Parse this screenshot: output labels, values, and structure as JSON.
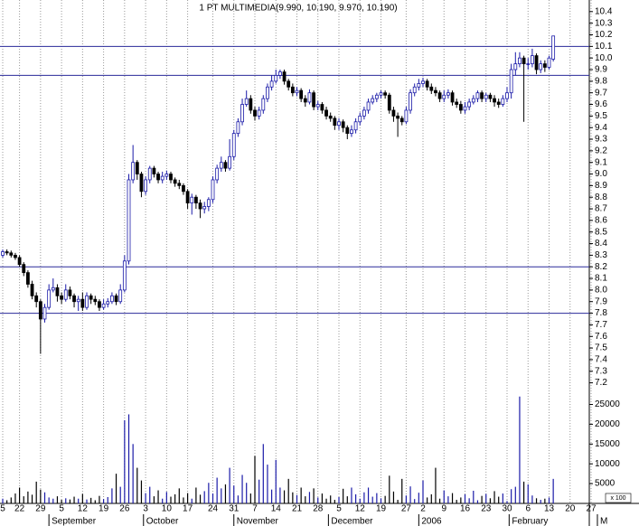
{
  "chart_data": {
    "type": "candlestick",
    "title": "1 PT MULTIMEDIA(9.990, 10.190, 9.970, 10.190)",
    "up_color": "#1a1aa8",
    "down_color": "#000000",
    "hline_color": "#2a2a9a",
    "hlines": [
      10.1,
      9.85,
      8.2,
      7.8
    ],
    "ylim": [
      7.15,
      10.5
    ],
    "yticks": [
      7.2,
      7.3,
      7.4,
      7.5,
      7.6,
      7.7,
      7.8,
      7.9,
      {
        "value": 8,
        "label": "8.0"
      },
      8.1,
      8.2,
      8.3,
      8.4,
      8.5,
      8.6,
      8.7,
      8.8,
      8.9,
      {
        "value": 9,
        "label": "9.0"
      },
      9.1,
      9.2,
      9.3,
      9.4,
      9.5,
      9.6,
      9.7,
      9.8,
      9.9,
      {
        "value": 10,
        "label": "10.0"
      },
      10.1,
      10.2,
      10.3,
      10.4
    ],
    "volume_ylim": [
      0,
      29000
    ],
    "volume_yticks": [
      5000,
      10000,
      15000,
      20000,
      25000
    ],
    "volume_unit": "x 100",
    "xticks": [
      {
        "value": 0,
        "label": "5"
      },
      {
        "value": 4,
        "label": "22"
      },
      {
        "value": 9,
        "label": "29"
      },
      {
        "value": 14,
        "label": "5"
      },
      {
        "value": 19,
        "label": "12"
      },
      {
        "value": 24,
        "label": "19"
      },
      {
        "value": 29,
        "label": "26"
      },
      {
        "value": 34,
        "label": "3"
      },
      {
        "value": 39,
        "label": "10"
      },
      {
        "value": 44,
        "label": "17"
      },
      {
        "value": 50,
        "label": "24"
      },
      {
        "value": 55,
        "label": "31"
      },
      {
        "value": 60,
        "label": "7"
      },
      {
        "value": 65,
        "label": "14"
      },
      {
        "value": 70,
        "label": "21"
      },
      {
        "value": 75,
        "label": "28"
      },
      {
        "value": 80,
        "label": "5"
      },
      {
        "value": 85,
        "label": "12"
      },
      {
        "value": 90,
        "label": "19"
      },
      {
        "value": 96,
        "label": "27"
      },
      {
        "value": 100,
        "label": "2"
      },
      {
        "value": 105,
        "label": "9"
      },
      {
        "value": 110,
        "label": "16"
      },
      {
        "value": 115,
        "label": "23"
      },
      {
        "value": 120,
        "label": "30"
      },
      {
        "value": 125,
        "label": "6"
      },
      {
        "value": 130,
        "label": "13"
      },
      {
        "value": 135,
        "label": "20"
      },
      {
        "value": 140,
        "label": "27"
      }
    ],
    "xmonths": [
      {
        "value": 11,
        "label": "September"
      },
      {
        "value": 33.5,
        "label": "October"
      },
      {
        "value": 55,
        "label": "November"
      },
      {
        "value": 77.5,
        "label": "December"
      },
      {
        "value": 99,
        "label": "2006"
      },
      {
        "value": 120.5,
        "label": "February"
      },
      {
        "value": 141.5,
        "label": "M"
      }
    ],
    "open": [
      8.3,
      8.33,
      8.32,
      8.3,
      8.28,
      8.22,
      8.15,
      8.05,
      7.95,
      7.9,
      7.75,
      7.85,
      8.0,
      8.02,
      7.95,
      7.92,
      8.0,
      7.95,
      7.9,
      7.92,
      7.85,
      7.95,
      7.92,
      7.9,
      7.85,
      7.88,
      7.9,
      7.95,
      7.9,
      8.0,
      8.25,
      8.95,
      9.1,
      9.0,
      8.85,
      8.95,
      9.05,
      9.0,
      8.95,
      8.98,
      9.0,
      8.95,
      8.92,
      8.9,
      8.85,
      8.75,
      8.8,
      8.75,
      8.7,
      8.72,
      8.78,
      8.95,
      9.05,
      9.1,
      9.05,
      9.15,
      9.35,
      9.45,
      9.6,
      9.65,
      9.55,
      9.5,
      9.55,
      9.65,
      9.75,
      9.8,
      9.85,
      9.88,
      9.8,
      9.75,
      9.7,
      9.72,
      9.65,
      9.62,
      9.7,
      9.58,
      9.6,
      9.55,
      9.5,
      9.48,
      9.42,
      9.45,
      9.4,
      9.35,
      9.38,
      9.45,
      9.5,
      9.55,
      9.62,
      9.65,
      9.68,
      9.7,
      9.68,
      9.55,
      9.5,
      9.48,
      9.45,
      9.55,
      9.7,
      9.75,
      9.78,
      9.8,
      9.75,
      9.72,
      9.7,
      9.65,
      9.68,
      9.7,
      9.62,
      9.6,
      9.55,
      9.58,
      9.62,
      9.65,
      9.7,
      9.65,
      9.68,
      9.65,
      9.62,
      9.6,
      9.65,
      9.7,
      9.9,
      9.95,
      10.0,
      9.95,
      9.95,
      10.02,
      9.9,
      9.95,
      9.92,
      9.99
    ],
    "high": [
      8.35,
      8.35,
      8.34,
      8.32,
      8.3,
      8.24,
      8.17,
      8.08,
      7.98,
      7.92,
      7.88,
      8.05,
      8.1,
      8.05,
      7.98,
      8.05,
      8.03,
      7.97,
      7.95,
      7.98,
      7.98,
      7.97,
      7.95,
      7.92,
      7.92,
      7.93,
      7.98,
      7.97,
      8.05,
      8.3,
      9.0,
      9.25,
      9.12,
      9.02,
      8.98,
      9.07,
      9.07,
      9.02,
      9.02,
      9.03,
      9.02,
      8.97,
      8.95,
      8.92,
      8.87,
      8.83,
      8.82,
      8.78,
      8.76,
      8.8,
      8.98,
      9.08,
      9.15,
      9.12,
      9.3,
      9.38,
      9.48,
      9.65,
      9.72,
      9.68,
      9.58,
      9.58,
      9.68,
      9.78,
      9.85,
      9.9,
      9.9,
      9.9,
      9.82,
      9.78,
      9.75,
      9.74,
      9.68,
      9.73,
      9.72,
      9.63,
      9.62,
      9.58,
      9.53,
      9.5,
      9.48,
      9.47,
      9.42,
      9.42,
      9.48,
      9.53,
      9.58,
      9.65,
      9.68,
      9.7,
      9.72,
      9.72,
      9.7,
      9.58,
      9.53,
      9.5,
      9.58,
      9.73,
      9.78,
      9.82,
      9.83,
      9.82,
      9.78,
      9.75,
      9.72,
      9.72,
      9.73,
      9.72,
      9.65,
      9.63,
      9.62,
      9.65,
      9.68,
      9.72,
      9.72,
      9.7,
      9.7,
      9.68,
      9.65,
      9.68,
      9.75,
      9.95,
      10.05,
      10.05,
      10.02,
      10.0,
      10.08,
      10.04,
      9.98,
      9.98,
      10.02,
      10.19
    ],
    "low": [
      8.28,
      8.3,
      8.28,
      8.26,
      8.2,
      8.12,
      8.02,
      7.92,
      7.85,
      7.45,
      7.72,
      7.83,
      7.98,
      7.9,
      7.88,
      7.9,
      7.92,
      7.85,
      7.82,
      7.82,
      7.83,
      7.88,
      7.87,
      7.82,
      7.83,
      7.85,
      7.88,
      7.87,
      7.88,
      7.98,
      8.22,
      8.92,
      8.95,
      8.8,
      8.82,
      8.92,
      8.97,
      8.92,
      8.92,
      8.95,
      8.92,
      8.89,
      8.87,
      8.82,
      8.7,
      8.65,
      8.7,
      8.62,
      8.66,
      8.68,
      8.75,
      8.92,
      9.02,
      9.02,
      9.03,
      9.12,
      9.32,
      9.42,
      9.58,
      9.52,
      9.46,
      9.47,
      9.52,
      9.62,
      9.72,
      9.78,
      9.82,
      9.77,
      9.72,
      9.67,
      9.67,
      9.62,
      9.58,
      9.6,
      9.55,
      9.55,
      9.52,
      9.47,
      9.45,
      9.38,
      9.38,
      9.36,
      9.3,
      9.32,
      9.35,
      9.42,
      9.47,
      9.52,
      9.6,
      9.62,
      9.65,
      9.65,
      9.52,
      9.45,
      9.32,
      9.42,
      9.43,
      9.52,
      9.67,
      9.72,
      9.75,
      9.72,
      9.69,
      9.67,
      9.62,
      9.62,
      9.65,
      9.59,
      9.57,
      9.52,
      9.52,
      9.55,
      9.6,
      9.62,
      9.62,
      9.62,
      9.62,
      9.58,
      9.57,
      9.58,
      9.62,
      9.65,
      9.85,
      9.92,
      9.45,
      9.9,
      9.92,
      9.86,
      9.87,
      9.88,
      9.9,
      9.97
    ],
    "close": [
      8.33,
      8.32,
      8.3,
      8.28,
      8.22,
      8.15,
      8.05,
      7.95,
      7.9,
      7.75,
      7.85,
      8.0,
      8.02,
      7.95,
      7.92,
      8.0,
      7.95,
      7.9,
      7.92,
      7.85,
      7.95,
      7.92,
      7.9,
      7.85,
      7.88,
      7.9,
      7.95,
      7.9,
      8.0,
      8.25,
      8.95,
      9.1,
      9.0,
      8.85,
      8.95,
      9.05,
      9.0,
      8.95,
      8.98,
      9.0,
      8.95,
      8.92,
      8.9,
      8.85,
      8.75,
      8.8,
      8.75,
      8.7,
      8.72,
      8.78,
      8.95,
      9.05,
      9.1,
      9.05,
      9.15,
      9.35,
      9.45,
      9.6,
      9.65,
      9.55,
      9.5,
      9.55,
      9.65,
      9.75,
      9.8,
      9.85,
      9.88,
      9.8,
      9.75,
      9.7,
      9.72,
      9.65,
      9.62,
      9.7,
      9.58,
      9.6,
      9.55,
      9.5,
      9.48,
      9.42,
      9.45,
      9.4,
      9.35,
      9.38,
      9.45,
      9.5,
      9.55,
      9.62,
      9.65,
      9.68,
      9.7,
      9.68,
      9.55,
      9.5,
      9.48,
      9.45,
      9.55,
      9.7,
      9.75,
      9.78,
      9.8,
      9.75,
      9.72,
      9.7,
      9.65,
      9.68,
      9.7,
      9.62,
      9.6,
      9.55,
      9.58,
      9.62,
      9.65,
      9.7,
      9.65,
      9.68,
      9.65,
      9.62,
      9.6,
      9.65,
      9.7,
      9.9,
      9.95,
      10.0,
      9.95,
      9.95,
      10.02,
      9.9,
      9.95,
      9.92,
      10.0,
      10.19
    ],
    "volume": [
      1200,
      800,
      1500,
      2500,
      4000,
      1800,
      3000,
      2200,
      5500,
      3500,
      2800,
      1500,
      1200,
      1800,
      900,
      1300,
      1000,
      1700,
      1200,
      2400,
      1000,
      1400,
      800,
      1900,
      1100,
      1600,
      3800,
      7500,
      4200,
      21000,
      22500,
      15000,
      9000,
      5800,
      2600,
      4200,
      1800,
      3300,
      1200,
      2900,
      1700,
      2300,
      3800,
      1500,
      2600,
      1200,
      4000,
      2200,
      3100,
      5200,
      2500,
      6500,
      3800,
      4800,
      9000,
      4500,
      2000,
      7200,
      5200,
      2500,
      12000,
      6000,
      15000,
      9800,
      3500,
      11000,
      4000,
      3300,
      6200,
      2800,
      2100,
      4000,
      1800,
      2900,
      3800,
      1500,
      2500,
      1200,
      2000,
      900,
      1600,
      3700,
      1800,
      4000,
      2300,
      1200,
      2800,
      4000,
      1700,
      2600,
      1300,
      1900,
      7000,
      3000,
      900,
      6200,
      2000,
      4300,
      1100,
      2700,
      5800,
      1500,
      2300,
      9000,
      1200,
      3300,
      1800,
      2600,
      900,
      1500,
      2300,
      1300,
      3200,
      800,
      1900,
      2400,
      1300,
      3100,
      1700,
      2500,
      600,
      3600,
      4200,
      27000,
      5500,
      4800,
      2000,
      1300,
      900,
      1200,
      1500,
      6200
    ]
  }
}
